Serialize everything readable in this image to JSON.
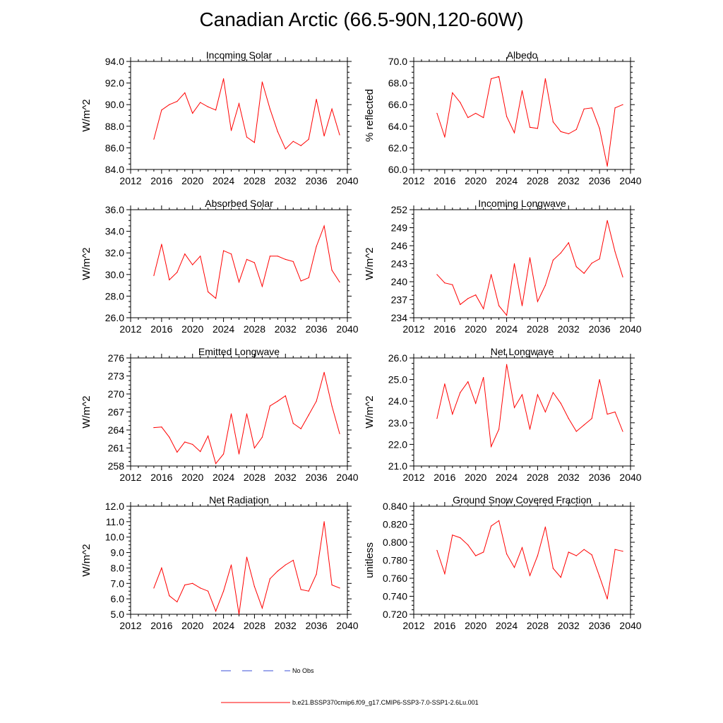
{
  "title": "Canadian Arctic (66.5-90N,120-60W)",
  "legend": {
    "entries": [
      {
        "label": "No Obs",
        "color": "#3b4fd8",
        "style": "dashed"
      },
      {
        "label": "b.e21.BSSP370cmip6.f09_g17.CMIP6-SSP3-7.0-SSP1-2.6Lu.001",
        "color": "#ff0000",
        "style": "solid"
      }
    ]
  },
  "chart_data": [
    {
      "type": "line",
      "title": "Incoming Solar",
      "ylabel": "W/m^2",
      "xlim": [
        2012,
        2040
      ],
      "x_ticks": [
        "2012",
        "2016",
        "2020",
        "2024",
        "2028",
        "2032",
        "2036",
        "2040"
      ],
      "ylim": [
        84,
        94
      ],
      "y_ticks": [
        "84.0",
        "86.0",
        "88.0",
        "90.0",
        "92.0",
        "94.0"
      ],
      "x": [
        2015,
        2016,
        2017,
        2018,
        2019,
        2020,
        2021,
        2022,
        2023,
        2024,
        2025,
        2026,
        2027,
        2028,
        2029,
        2030,
        2031,
        2032,
        2033,
        2034,
        2035,
        2036,
        2037,
        2038,
        2039
      ],
      "series": [
        {
          "name": "b.e21.BSSP370cmip6.f09_g17.CMIP6-SSP3-7.0-SSP1-2.6Lu.001",
          "color": "#ff0000",
          "values": [
            86.8,
            89.5,
            90.0,
            90.3,
            91.1,
            89.2,
            90.2,
            89.8,
            89.5,
            92.4,
            87.6,
            90.1,
            87.0,
            86.5,
            92.1,
            89.6,
            87.5,
            85.9,
            86.6,
            86.2,
            86.8,
            90.5,
            87.1,
            89.6,
            87.2
          ]
        }
      ]
    },
    {
      "type": "line",
      "title": "Albedo",
      "ylabel": "% reflected",
      "xlim": [
        2012,
        2040
      ],
      "x_ticks": [
        "2012",
        "2016",
        "2020",
        "2024",
        "2028",
        "2032",
        "2036",
        "2040"
      ],
      "ylim": [
        60,
        70
      ],
      "y_ticks": [
        "60.0",
        "62.0",
        "64.0",
        "66.0",
        "68.0",
        "70.0"
      ],
      "x": [
        2015,
        2016,
        2017,
        2018,
        2019,
        2020,
        2021,
        2022,
        2023,
        2024,
        2025,
        2026,
        2027,
        2028,
        2029,
        2030,
        2031,
        2032,
        2033,
        2034,
        2035,
        2036,
        2037,
        2038,
        2039
      ],
      "series": [
        {
          "name": "b.e21.BSSP370cmip6.f09_g17.CMIP6-SSP3-7.0-SSP1-2.6Lu.001",
          "color": "#ff0000",
          "values": [
            65.2,
            63.0,
            67.1,
            66.2,
            64.8,
            65.2,
            64.8,
            68.4,
            68.6,
            64.9,
            63.4,
            67.3,
            63.9,
            63.8,
            68.4,
            64.4,
            63.5,
            63.3,
            63.7,
            65.6,
            65.7,
            63.8,
            60.3,
            65.7,
            66.0
          ]
        }
      ]
    },
    {
      "type": "line",
      "title": "Absorbed Solar",
      "ylabel": "W/m^2",
      "xlim": [
        2012,
        2040
      ],
      "x_ticks": [
        "2012",
        "2016",
        "2020",
        "2024",
        "2028",
        "2032",
        "2036",
        "2040"
      ],
      "ylim": [
        26,
        36
      ],
      "y_ticks": [
        "26.0",
        "28.0",
        "30.0",
        "32.0",
        "34.0",
        "36.0"
      ],
      "x": [
        2015,
        2016,
        2017,
        2018,
        2019,
        2020,
        2021,
        2022,
        2023,
        2024,
        2025,
        2026,
        2027,
        2028,
        2029,
        2030,
        2031,
        2032,
        2033,
        2034,
        2035,
        2036,
        2037,
        2038,
        2039
      ],
      "series": [
        {
          "name": "b.e21.BSSP370cmip6.f09_g17.CMIP6-SSP3-7.0-SSP1-2.6Lu.001",
          "color": "#ff0000",
          "values": [
            29.9,
            32.8,
            29.5,
            30.2,
            31.9,
            30.9,
            31.7,
            28.4,
            27.8,
            32.2,
            31.9,
            29.3,
            31.4,
            31.1,
            28.9,
            31.7,
            31.7,
            31.4,
            31.2,
            29.4,
            29.7,
            32.6,
            34.5,
            30.4,
            29.3
          ]
        }
      ]
    },
    {
      "type": "line",
      "title": "Incoming Longwave",
      "ylabel": "W/m^2",
      "xlim": [
        2012,
        2040
      ],
      "x_ticks": [
        "2012",
        "2016",
        "2020",
        "2024",
        "2028",
        "2032",
        "2036",
        "2040"
      ],
      "ylim": [
        234,
        252
      ],
      "y_ticks": [
        "234",
        "237",
        "240",
        "243",
        "246",
        "249",
        "252"
      ],
      "x": [
        2015,
        2016,
        2017,
        2018,
        2019,
        2020,
        2021,
        2022,
        2023,
        2024,
        2025,
        2026,
        2027,
        2028,
        2029,
        2030,
        2031,
        2032,
        2033,
        2034,
        2035,
        2036,
        2037,
        2038,
        2039
      ],
      "series": [
        {
          "name": "b.e21.BSSP370cmip6.f09_g17.CMIP6-SSP3-7.0-SSP1-2.6Lu.001",
          "color": "#ff0000",
          "values": [
            241.2,
            239.8,
            239.5,
            236.2,
            237.2,
            237.8,
            235.5,
            241.2,
            236.0,
            234.4,
            243.0,
            236.0,
            244.0,
            236.7,
            239.4,
            243.6,
            244.8,
            246.5,
            242.5,
            241.4,
            243.1,
            243.8,
            250.2,
            245.0,
            240.8
          ]
        }
      ]
    },
    {
      "type": "line",
      "title": "Emitted Longwave",
      "ylabel": "W/m^2",
      "xlim": [
        2012,
        2040
      ],
      "x_ticks": [
        "2012",
        "2016",
        "2020",
        "2024",
        "2028",
        "2032",
        "2036",
        "2040"
      ],
      "ylim": [
        258,
        276
      ],
      "y_ticks": [
        "258",
        "261",
        "264",
        "267",
        "270",
        "273",
        "276"
      ],
      "x": [
        2015,
        2016,
        2017,
        2018,
        2019,
        2020,
        2021,
        2022,
        2023,
        2024,
        2025,
        2026,
        2027,
        2028,
        2029,
        2030,
        2031,
        2032,
        2033,
        2034,
        2035,
        2036,
        2037,
        2038,
        2039
      ],
      "series": [
        {
          "name": "b.e21.BSSP370cmip6.f09_g17.CMIP6-SSP3-7.0-SSP1-2.6Lu.001",
          "color": "#ff0000",
          "values": [
            264.4,
            264.5,
            262.8,
            260.3,
            262.0,
            261.6,
            260.4,
            263.0,
            258.4,
            260.0,
            266.7,
            260.0,
            266.7,
            261.0,
            262.8,
            268.0,
            268.8,
            269.7,
            265.1,
            264.2,
            266.5,
            268.8,
            273.6,
            268.0,
            263.4
          ]
        }
      ]
    },
    {
      "type": "line",
      "title": "Net Longwave",
      "ylabel": "W/m^2",
      "xlim": [
        2012,
        2040
      ],
      "x_ticks": [
        "2012",
        "2016",
        "2020",
        "2024",
        "2028",
        "2032",
        "2036",
        "2040"
      ],
      "ylim": [
        21,
        26
      ],
      "y_ticks": [
        "21.0",
        "22.0",
        "23.0",
        "24.0",
        "25.0",
        "26.0"
      ],
      "x": [
        2015,
        2016,
        2017,
        2018,
        2019,
        2020,
        2021,
        2022,
        2023,
        2024,
        2025,
        2026,
        2027,
        2028,
        2029,
        2030,
        2031,
        2032,
        2033,
        2034,
        2035,
        2036,
        2037,
        2038,
        2039
      ],
      "series": [
        {
          "name": "b.e21.BSSP370cmip6.f09_g17.CMIP6-SSP3-7.0-SSP1-2.6Lu.001",
          "color": "#ff0000",
          "values": [
            23.2,
            24.8,
            23.4,
            24.4,
            24.9,
            23.9,
            25.1,
            21.9,
            22.7,
            25.7,
            23.7,
            24.3,
            22.7,
            24.3,
            23.5,
            24.4,
            23.9,
            23.2,
            22.6,
            22.9,
            23.2,
            25.0,
            23.4,
            23.5,
            22.6
          ]
        }
      ]
    },
    {
      "type": "line",
      "title": "Net Radiation",
      "ylabel": "W/m^2",
      "xlim": [
        2012,
        2040
      ],
      "x_ticks": [
        "2012",
        "2016",
        "2020",
        "2024",
        "2028",
        "2032",
        "2036",
        "2040"
      ],
      "ylim": [
        5,
        12
      ],
      "y_ticks": [
        "5.0",
        "6.0",
        "7.0",
        "8.0",
        "9.0",
        "10.0",
        "11.0",
        "12.0"
      ],
      "x": [
        2015,
        2016,
        2017,
        2018,
        2019,
        2020,
        2021,
        2022,
        2023,
        2024,
        2025,
        2026,
        2027,
        2028,
        2029,
        2030,
        2031,
        2032,
        2033,
        2034,
        2035,
        2036,
        2037,
        2038,
        2039
      ],
      "series": [
        {
          "name": "b.e21.BSSP370cmip6.f09_g17.CMIP6-SSP3-7.0-SSP1-2.6Lu.001",
          "color": "#ff0000",
          "values": [
            6.7,
            8.0,
            6.2,
            5.8,
            6.9,
            7.0,
            6.7,
            6.5,
            5.2,
            6.5,
            8.2,
            5.0,
            8.7,
            6.8,
            5.4,
            7.3,
            7.8,
            8.2,
            8.5,
            6.6,
            6.5,
            7.6,
            11.0,
            6.9,
            6.7
          ]
        }
      ]
    },
    {
      "type": "line",
      "title": "Ground Snow Covered Fraction",
      "ylabel": "unitless",
      "xlim": [
        2012,
        2040
      ],
      "x_ticks": [
        "2012",
        "2016",
        "2020",
        "2024",
        "2028",
        "2032",
        "2036",
        "2040"
      ],
      "ylim": [
        0.72,
        0.84
      ],
      "y_ticks": [
        "0.720",
        "0.740",
        "0.760",
        "0.780",
        "0.800",
        "0.820",
        "0.840"
      ],
      "x": [
        2015,
        2016,
        2017,
        2018,
        2019,
        2020,
        2021,
        2022,
        2023,
        2024,
        2025,
        2026,
        2027,
        2028,
        2029,
        2030,
        2031,
        2032,
        2033,
        2034,
        2035,
        2036,
        2037,
        2038,
        2039
      ],
      "series": [
        {
          "name": "b.e21.BSSP370cmip6.f09_g17.CMIP6-SSP3-7.0-SSP1-2.6Lu.001",
          "color": "#ff0000",
          "values": [
            0.791,
            0.765,
            0.808,
            0.805,
            0.797,
            0.785,
            0.789,
            0.818,
            0.824,
            0.787,
            0.772,
            0.794,
            0.763,
            0.785,
            0.817,
            0.771,
            0.761,
            0.789,
            0.785,
            0.792,
            0.786,
            0.762,
            0.737,
            0.792,
            0.79
          ]
        }
      ]
    }
  ]
}
